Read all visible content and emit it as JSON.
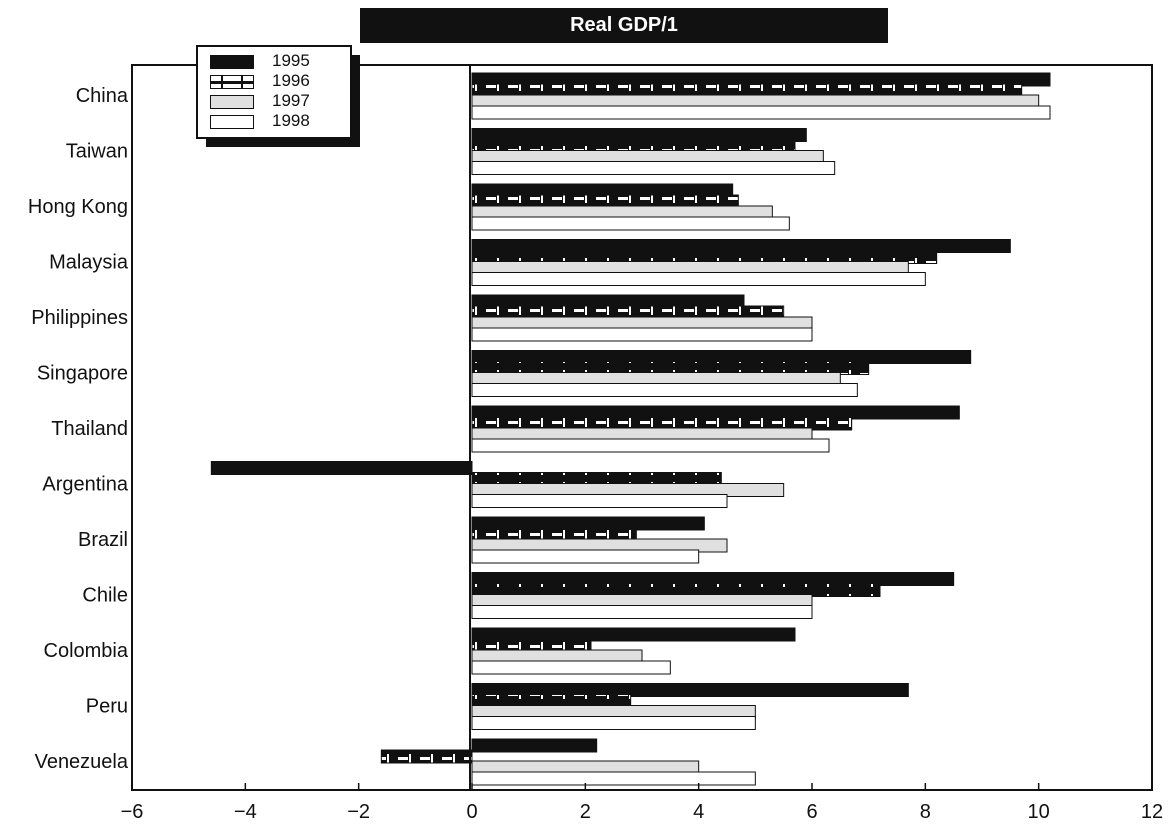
{
  "chart_data": {
    "type": "bar",
    "orientation": "horizontal",
    "title": "Real GDP/1",
    "xlabel": "",
    "ylabel": "",
    "xlim": [
      -6,
      12
    ],
    "xticks": [
      "−6",
      "−4",
      "−2",
      "0",
      "2",
      "4",
      "6",
      "8",
      "10",
      "12"
    ],
    "xtick_values": [
      -6,
      -4,
      -2,
      0,
      2,
      4,
      6,
      8,
      10,
      12
    ],
    "legend_position": "top-left",
    "categories": [
      "China",
      "Taiwan",
      "Hong Kong",
      "Malaysia",
      "Philippines",
      "Singapore",
      "Thailand",
      "Argentina",
      "Brazil",
      "Chile",
      "Colombia",
      "Peru",
      "Venezuela"
    ],
    "series": [
      {
        "name": "1995",
        "color": "#111111",
        "pattern": "solid",
        "values": [
          10.2,
          5.9,
          4.6,
          9.5,
          4.8,
          8.8,
          8.6,
          -4.6,
          4.1,
          8.5,
          5.7,
          7.7,
          2.2
        ]
      },
      {
        "name": "1996",
        "color": "#111111",
        "pattern": "dashed",
        "values": [
          9.7,
          5.7,
          4.7,
          8.2,
          5.5,
          7.0,
          6.7,
          4.4,
          2.9,
          7.2,
          2.1,
          2.8,
          -1.6
        ]
      },
      {
        "name": "1997",
        "color": "#e0e0e0",
        "pattern": "solid",
        "values": [
          10.0,
          6.2,
          5.3,
          7.7,
          6.0,
          6.5,
          6.0,
          5.5,
          4.5,
          6.0,
          3.0,
          5.0,
          4.0
        ]
      },
      {
        "name": "1998",
        "color": "#ffffff",
        "pattern": "solid",
        "values": [
          10.2,
          6.4,
          5.6,
          8.0,
          6.0,
          6.8,
          6.3,
          4.5,
          4.0,
          6.0,
          3.5,
          5.0,
          5.0
        ]
      }
    ]
  }
}
